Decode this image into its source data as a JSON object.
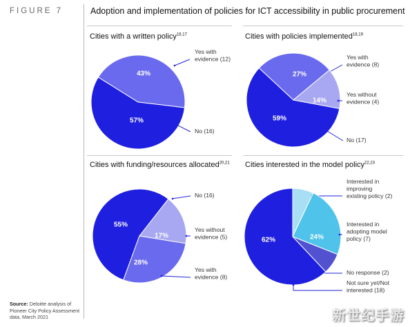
{
  "figure": {
    "label": "FIGURE 7",
    "title": "Adoption and implementation of policies for ICT accessibility in public procurement"
  },
  "source": {
    "label": "Source:",
    "text_line1": " Deloitte analysis of",
    "text_line2": "Pioneer City Policy Assessment",
    "text_line3": "data, March 2021"
  },
  "colors": {
    "deep_blue": "#1f1fe0",
    "medium_blue": "#6a6aef",
    "light_purple": "#a7a7f2",
    "sky_blue": "#4fc3ea",
    "pale_blue": "#a9dff4",
    "slate_blue": "#5252d0"
  },
  "watermark": "新世纪手游",
  "chart_data": [
    {
      "type": "pie",
      "title": "Cities with a written policy",
      "title_sup": "16,17",
      "slices": [
        {
          "label": "Yes with evidence (12)",
          "label_lines": [
            "Yes with",
            "evidence (12)"
          ],
          "value": 43,
          "pct_label": "43%",
          "color": "#6a6aef"
        },
        {
          "label": "No (16)",
          "label_lines": [
            "No (16)"
          ],
          "value": 57,
          "pct_label": "57%",
          "color": "#1f1fe0"
        }
      ]
    },
    {
      "type": "pie",
      "title": "Cities with policies implemented",
      "title_sup": "18,19",
      "slices": [
        {
          "label": "Yes with evidence (8)",
          "label_lines": [
            "Yes with",
            "evidence (8)"
          ],
          "value": 27,
          "pct_label": "27%",
          "color": "#6a6aef"
        },
        {
          "label": "Yes without evidence (4)",
          "label_lines": [
            "Yes without",
            "evidence (4)"
          ],
          "value": 14,
          "pct_label": "14%",
          "color": "#a7a7f2"
        },
        {
          "label": "No (17)",
          "label_lines": [
            "No (17)"
          ],
          "value": 59,
          "pct_label": "59%",
          "color": "#1f1fe0"
        }
      ]
    },
    {
      "type": "pie",
      "title": "Cities with funding/resources allocated",
      "title_sup": "20,21",
      "slices": [
        {
          "label": "No (16)",
          "label_lines": [
            "No (16)"
          ],
          "value": 55,
          "pct_label": "55%",
          "color": "#1f1fe0"
        },
        {
          "label": "Yes without evidence (5)",
          "label_lines": [
            "Yes without",
            "evidence (5)"
          ],
          "value": 17,
          "pct_label": "17%",
          "color": "#a7a7f2"
        },
        {
          "label": "Yes with evidence (8)",
          "label_lines": [
            "Yes with",
            "evidence (8)"
          ],
          "value": 28,
          "pct_label": "28%",
          "color": "#6a6aef"
        }
      ]
    },
    {
      "type": "pie",
      "title": "Cities interested in the model policy",
      "title_sup": "22,23",
      "slices": [
        {
          "label": "Interested in improving existing policy (2)",
          "label_lines": [
            "Interested in",
            "improving",
            "existing policy (2)"
          ],
          "value": 7,
          "pct_label": "7%",
          "color": "#a9dff4"
        },
        {
          "label": "Interested in adopting model policy (7)",
          "label_lines": [
            "Interested in",
            "adopting model",
            "policy (7)"
          ],
          "value": 24,
          "pct_label": "24%",
          "color": "#4fc3ea"
        },
        {
          "label": "No response (2)",
          "label_lines": [
            "No response (2)"
          ],
          "value": 7,
          "pct_label": "7%",
          "color": "#5252d0"
        },
        {
          "label": "Not sure yet/Not interested (18)",
          "label_lines": [
            "Not sure yet/Not",
            "interested (18)"
          ],
          "value": 62,
          "pct_label": "62%",
          "color": "#1f1fe0"
        }
      ]
    }
  ]
}
